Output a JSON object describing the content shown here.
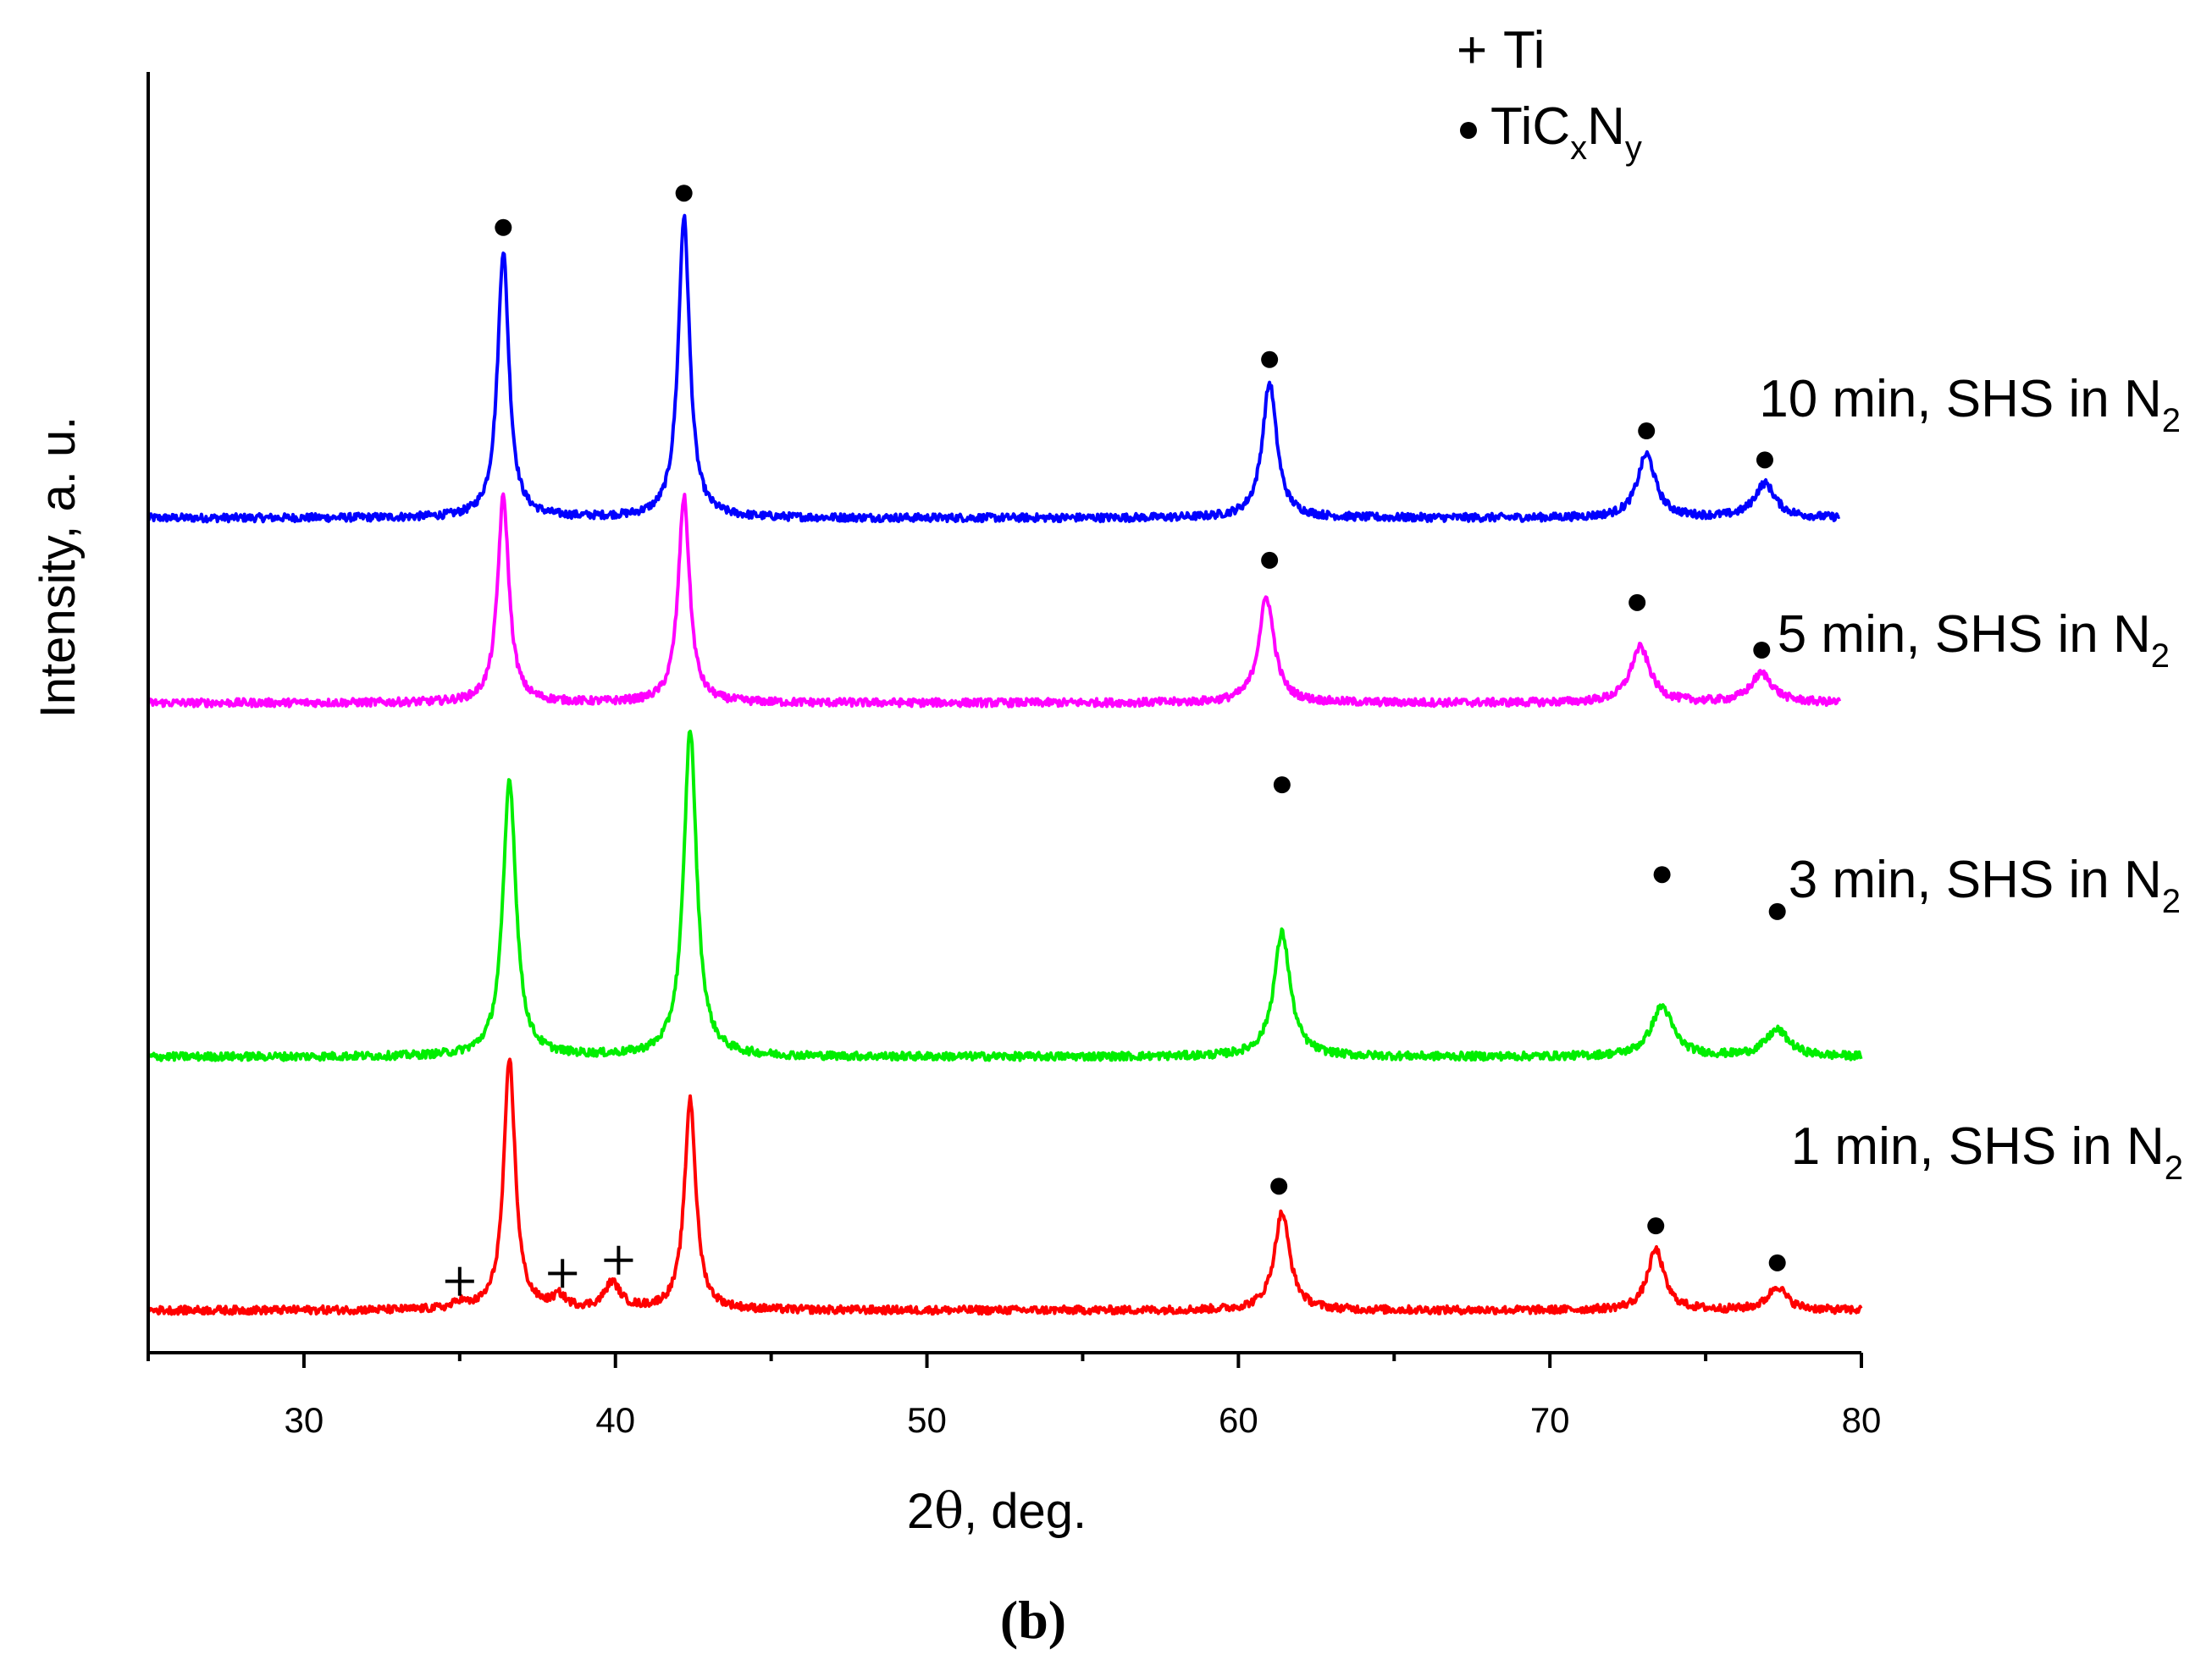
{
  "chart_data": {
    "type": "line",
    "panel_label_open": "(",
    "panel_label_letter": "b",
    "panel_label_close": ")",
    "xlabel_prefix": "2",
    "xlabel_theta": "θ",
    "xlabel_suffix": ", deg.",
    "ylabel": "Intensity, a. u.",
    "xlim": [
      25,
      80
    ],
    "xticks": [
      "30",
      "40",
      "50",
      "60",
      "70",
      "80"
    ],
    "y_unit": "arbitrary (curves vertically offset)",
    "legend": {
      "entries": [
        {
          "marker": "+",
          "label": "Ti"
        },
        {
          "marker": "●",
          "label_main": "TiC",
          "sub1": "x",
          "mid": "N",
          "sub2": "y"
        }
      ]
    },
    "series": [
      {
        "name": "10 min, SHS in N2",
        "label_main": "10 min, SHS in N",
        "label_sub": "2",
        "color": "#0000ff",
        "x_range": [
          25,
          79.3
        ],
        "baseline": 3.0,
        "peaks": [
          {
            "x": 36.4,
            "height": 1.01,
            "width": 0.22
          },
          {
            "x": 42.2,
            "height": 1.14,
            "width": 0.22
          },
          {
            "x": 61.0,
            "height": 0.51,
            "width": 0.28
          },
          {
            "x": 73.1,
            "height": 0.24,
            "width": 0.35
          },
          {
            "x": 76.9,
            "height": 0.13,
            "width": 0.4
          }
        ],
        "markers": [
          {
            "x": 36.4,
            "symbol": "dot",
            "y": 4.1
          },
          {
            "x": 42.2,
            "symbol": "dot",
            "y": 4.23
          },
          {
            "x": 61.0,
            "symbol": "dot",
            "y": 3.6
          },
          {
            "x": 73.1,
            "symbol": "dot",
            "y": 3.33
          },
          {
            "x": 76.9,
            "symbol": "dot",
            "y": 3.22
          }
        ]
      },
      {
        "name": "5 min, SHS in N2",
        "label_main": "5 min, SHS in N",
        "label_sub": "2",
        "color": "#ff00ff",
        "x_range": [
          25,
          79.3
        ],
        "baseline": 2.3,
        "peaks": [
          {
            "x": 36.4,
            "height": 0.78,
            "width": 0.22
          },
          {
            "x": 42.2,
            "height": 0.78,
            "width": 0.22
          },
          {
            "x": 60.9,
            "height": 0.4,
            "width": 0.3
          },
          {
            "x": 72.9,
            "height": 0.21,
            "width": 0.38
          },
          {
            "x": 76.8,
            "height": 0.11,
            "width": 0.42
          }
        ],
        "markers": [
          {
            "x": 61.0,
            "symbol": "dot",
            "y": 2.84
          },
          {
            "x": 72.8,
            "symbol": "dot",
            "y": 2.68
          },
          {
            "x": 76.8,
            "symbol": "dot",
            "y": 2.5
          }
        ]
      },
      {
        "name": "3 min, SHS in N2",
        "label_main": "3 min, SHS in N",
        "label_sub": "2",
        "color": "#00ee00",
        "x_range": [
          25,
          80
        ],
        "baseline": 0.96,
        "peaks": [
          {
            "x": 36.6,
            "height": 1.05,
            "width": 0.25
          },
          {
            "x": 42.4,
            "height": 1.24,
            "width": 0.25
          },
          {
            "x": 61.4,
            "height": 0.47,
            "width": 0.32
          },
          {
            "x": 73.6,
            "height": 0.19,
            "width": 0.42
          },
          {
            "x": 77.3,
            "height": 0.1,
            "width": 0.45
          }
        ],
        "markers": [
          {
            "x": 61.4,
            "symbol": "dot",
            "y": 1.99
          },
          {
            "x": 73.6,
            "symbol": "dot",
            "y": 1.65
          },
          {
            "x": 77.3,
            "symbol": "dot",
            "y": 1.51
          }
        ]
      },
      {
        "name": "1 min, SHS in N2",
        "label_main": "1 min, SHS in N",
        "label_sub": "2",
        "color": "#ff0000",
        "x_range": [
          25,
          80
        ],
        "baseline": 0.0,
        "peaks": [
          {
            "x": 36.6,
            "height": 0.95,
            "width": 0.22
          },
          {
            "x": 42.4,
            "height": 0.8,
            "width": 0.22
          },
          {
            "x": 61.4,
            "height": 0.37,
            "width": 0.3
          },
          {
            "x": 73.4,
            "height": 0.23,
            "width": 0.32
          },
          {
            "x": 77.3,
            "height": 0.09,
            "width": 0.35
          },
          {
            "x": 35.0,
            "height": 0.025,
            "width": 0.2
          },
          {
            "x": 38.2,
            "height": 0.045,
            "width": 0.25
          },
          {
            "x": 39.9,
            "height": 0.1,
            "width": 0.3
          }
        ],
        "markers": [
          {
            "x": 61.3,
            "symbol": "dot",
            "y": 0.47
          },
          {
            "x": 73.4,
            "symbol": "dot",
            "y": 0.32
          },
          {
            "x": 77.3,
            "symbol": "dot",
            "y": 0.18
          },
          {
            "x": 35.0,
            "symbol": "plus",
            "y": 0.11
          },
          {
            "x": 38.3,
            "symbol": "plus",
            "y": 0.14
          },
          {
            "x": 40.1,
            "symbol": "plus",
            "y": 0.19
          }
        ]
      }
    ]
  }
}
